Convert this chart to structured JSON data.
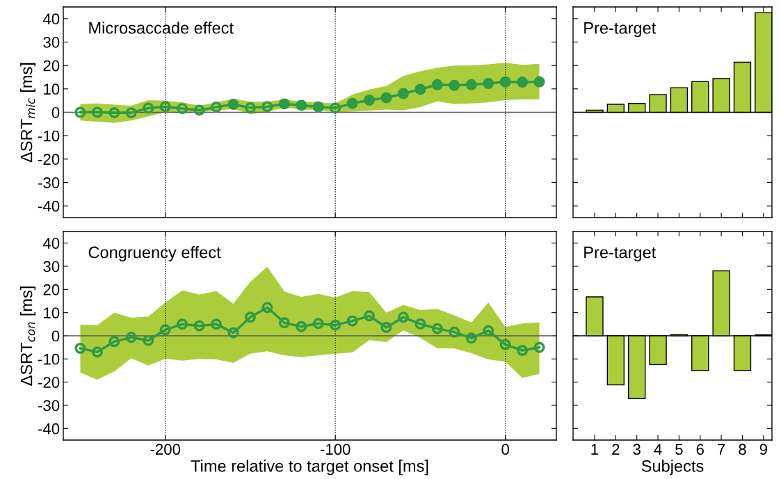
{
  "chart_data": [
    {
      "type": "line",
      "title": "Microsaccade effect",
      "ylabel": "ΔSRT$_{mic}$ [ms]",
      "tick_labels": "y",
      "marker": "circle",
      "grid": false,
      "x": [
        -250,
        -240,
        -230,
        -220,
        -210,
        -200,
        -190,
        -180,
        -170,
        -160,
        -150,
        -140,
        -130,
        -120,
        -110,
        -100,
        -90,
        -80,
        -70,
        -60,
        -50,
        -40,
        -30,
        -20,
        -10,
        0,
        10,
        20
      ],
      "xlim": [
        -260,
        30
      ],
      "xticks": [
        -200,
        -100,
        0
      ],
      "ylim": [
        -45,
        45
      ],
      "yticks": [
        -40,
        -30,
        -20,
        -10,
        0,
        10,
        20,
        30,
        40
      ],
      "ref_lines": [
        {
          "axis": "x",
          "value": -200,
          "color": "#000000",
          "line_style": "dotted"
        },
        {
          "axis": "x",
          "value": -100,
          "color": "#000000",
          "line_style": "dotted"
        },
        {
          "axis": "x",
          "value": 0,
          "color": "#000000",
          "line_style": "dotted"
        },
        {
          "axis": "y",
          "value": 0,
          "color": "#555555",
          "line_style": "solid"
        }
      ],
      "series": [
        {
          "type": "line",
          "color": "#2e9b47",
          "values": [
            0,
            0,
            -0.2,
            -0.2,
            1.8,
            2.4,
            1.6,
            0.9,
            2.2,
            3.4,
            1.9,
            2.4,
            3.6,
            3.0,
            2.3,
            1.8,
            3.8,
            5.2,
            6.2,
            8.0,
            9.8,
            11.8,
            11.5,
            11.8,
            12.3,
            13.0,
            12.9,
            13.0
          ],
          "lower": [
            -3.5,
            -4,
            -4.5,
            -3.5,
            -1.8,
            0,
            -0.5,
            0,
            0.7,
            1.5,
            -0.8,
            0.2,
            2.0,
            1.2,
            1.0,
            0,
            0.3,
            0.7,
            1.2,
            0.8,
            2.2,
            4.7,
            3.5,
            3.8,
            4.2,
            5.2,
            5.5,
            5.5
          ],
          "upper": [
            3.5,
            3.8,
            3.3,
            2.8,
            5.2,
            5.0,
            4.2,
            2.8,
            4.2,
            5.8,
            4.5,
            4.5,
            5.5,
            4.5,
            4.2,
            3.8,
            7.5,
            9.7,
            11.2,
            15.5,
            17.5,
            19,
            20,
            20,
            20.5,
            21.2,
            20.3,
            20.7
          ]
        },
        {
          "type": "scatter",
          "color": "#2e9b47",
          "x": [
            -160,
            -130,
            -120,
            -110,
            -90,
            -80,
            -70,
            -60,
            -50,
            -40,
            -30,
            -20,
            -10,
            0,
            10,
            20
          ],
          "values": [
            3.4,
            3.6,
            3.0,
            2.3,
            3.8,
            5.2,
            6.2,
            8.0,
            9.8,
            11.8,
            11.5,
            11.8,
            12.3,
            13.0,
            12.9,
            13.0
          ]
        }
      ]
    },
    {
      "type": "bar",
      "title": "Pre-target",
      "tick_labels": false,
      "color": "#abcd3c",
      "grid": false,
      "categories": [
        "1",
        "2",
        "3",
        "4",
        "5",
        "6",
        "7",
        "8",
        "9"
      ],
      "values": [
        0.9,
        3.4,
        3.8,
        7.5,
        10.5,
        13.1,
        14.4,
        21.4,
        42.6
      ],
      "ylim": [
        -45,
        45
      ],
      "yticks": [
        -40,
        -30,
        -20,
        -10,
        0,
        10,
        20,
        30,
        40
      ],
      "ref_lines": [
        {
          "axis": "y",
          "value": 0,
          "color": "#000000",
          "line_style": "solid"
        }
      ]
    },
    {
      "type": "line",
      "title": "Congruency effect",
      "ylabel": "ΔSRT$_{con}$ [ms]",
      "xlabel": "Time relative to target onset [ms]",
      "marker": "circle",
      "grid": false,
      "x": [
        -250,
        -240,
        -230,
        -220,
        -210,
        -200,
        -190,
        -180,
        -170,
        -160,
        -150,
        -140,
        -130,
        -120,
        -110,
        -100,
        -90,
        -80,
        -70,
        -60,
        -50,
        -40,
        -30,
        -20,
        -10,
        0,
        10,
        20
      ],
      "xlim": [
        -260,
        30
      ],
      "xticks": [
        -200,
        -100,
        0
      ],
      "ylim": [
        -45,
        45
      ],
      "yticks": [
        -40,
        -30,
        -20,
        -10,
        0,
        10,
        20,
        30,
        40
      ],
      "ref_lines": [
        {
          "axis": "x",
          "value": -200,
          "color": "#000000",
          "line_style": "dotted"
        },
        {
          "axis": "x",
          "value": -100,
          "color": "#000000",
          "line_style": "dotted"
        },
        {
          "axis": "x",
          "value": 0,
          "color": "#000000",
          "line_style": "dotted"
        },
        {
          "axis": "y",
          "value": 0,
          "color": "#555555",
          "line_style": "solid"
        }
      ],
      "series": [
        {
          "type": "line",
          "color": "#2e9b47",
          "values": [
            -5.4,
            -7.0,
            -2.5,
            -0.7,
            -2.0,
            2.6,
            5.0,
            4.3,
            5.0,
            1.3,
            8.0,
            12.2,
            5.6,
            4.0,
            5.3,
            4.6,
            6.4,
            8.6,
            3.6,
            8.0,
            5.1,
            3.1,
            1.6,
            -1.0,
            2.2,
            -3.8,
            -6.3,
            -5.0
          ],
          "lower": [
            -15.9,
            -18.9,
            -15.4,
            -9.7,
            -12.8,
            -9.9,
            -10.7,
            -10,
            -10.2,
            -11.7,
            -7.7,
            -6.7,
            -8.4,
            -9.2,
            -8.4,
            -7.7,
            -7.2,
            -1.9,
            -2.7,
            2.3,
            -0.9,
            -5.4,
            -5.5,
            -7.5,
            -10.2,
            -11.2,
            -18.2,
            -16.4
          ],
          "upper": [
            4.8,
            4.6,
            10,
            7.8,
            8.3,
            14.3,
            19.6,
            17.8,
            19.3,
            13.8,
            23.3,
            29.8,
            19.1,
            16.8,
            18.1,
            16.5,
            19.3,
            18.8,
            10,
            13.3,
            11.1,
            11.6,
            8.8,
            5.8,
            14.3,
            3.8,
            5.3,
            5.8
          ]
        }
      ]
    },
    {
      "type": "bar",
      "title": "Pre-target",
      "xlabel": "Subjects",
      "tick_labels": "x",
      "color": "#abcd3c",
      "grid": false,
      "categories": [
        "1",
        "2",
        "3",
        "4",
        "5",
        "6",
        "7",
        "8",
        "9"
      ],
      "values": [
        16.8,
        -21.2,
        -27.1,
        -12.4,
        0.5,
        -15.0,
        28.0,
        -15.0,
        0.4
      ],
      "ylim": [
        -45,
        45
      ],
      "yticks": [
        -40,
        -30,
        -20,
        -10,
        0,
        10,
        20,
        30,
        40
      ],
      "ref_lines": [
        {
          "axis": "y",
          "value": 0,
          "color": "#000000",
          "line_style": "solid"
        }
      ]
    }
  ]
}
